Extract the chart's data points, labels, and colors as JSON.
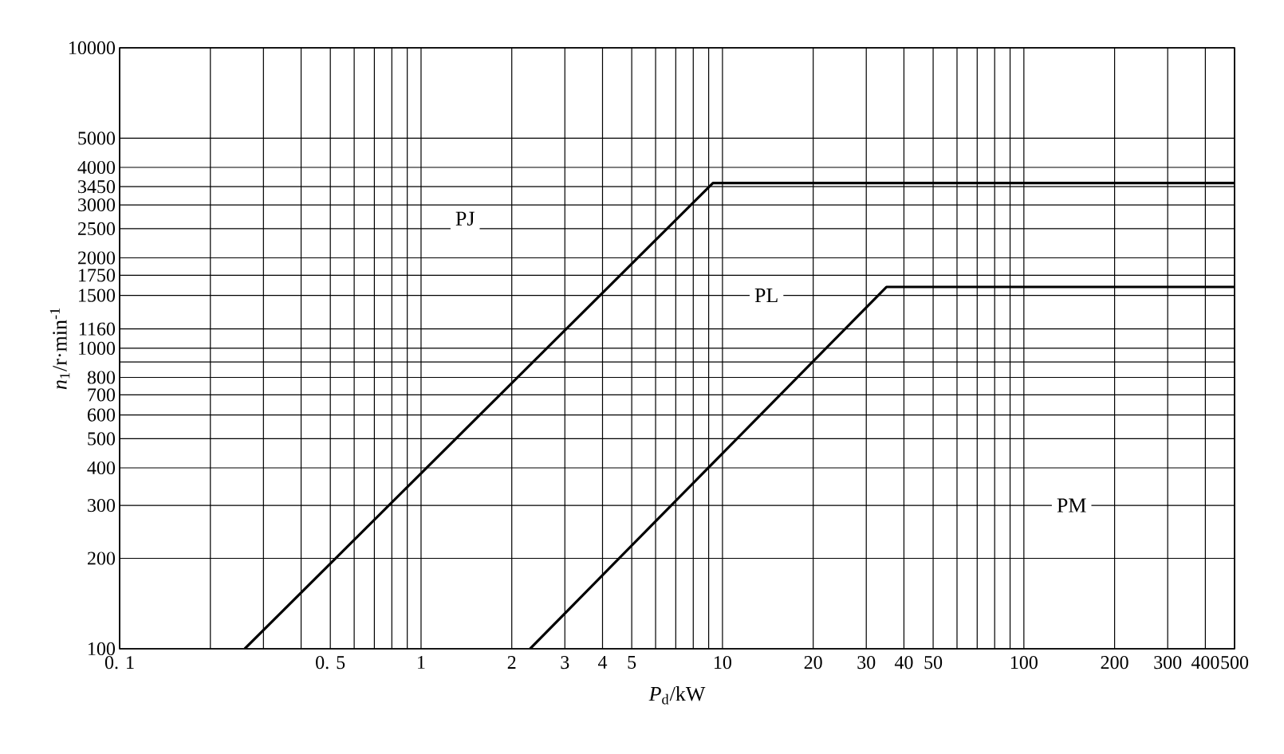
{
  "chart_data": {
    "type": "line",
    "xlabel": "*P*$_{d}$/kW",
    "ylabel": "*n*$_{1}$/r·min$^{-1}$",
    "log": "xy",
    "grid": true,
    "marker": "none",
    "line_style": "solid",
    "xlim": [
      0.1,
      500
    ],
    "ylim": [
      100,
      10000
    ],
    "xticks": [
      {
        "value": 0.1,
        "label": "0. 1"
      },
      {
        "value": 0.2,
        "label": null
      },
      {
        "value": 0.3,
        "label": null
      },
      {
        "value": 0.4,
        "label": null
      },
      {
        "value": 0.5,
        "label": "0. 5"
      },
      {
        "value": 0.6,
        "label": null
      },
      {
        "value": 0.7,
        "label": null
      },
      {
        "value": 0.8,
        "label": null
      },
      {
        "value": 0.9,
        "label": null
      },
      1,
      2,
      3,
      4,
      5,
      {
        "value": 6,
        "label": null
      },
      {
        "value": 7,
        "label": null
      },
      {
        "value": 8,
        "label": null
      },
      {
        "value": 9,
        "label": null
      },
      10,
      20,
      30,
      40,
      50,
      {
        "value": 60,
        "label": null
      },
      {
        "value": 70,
        "label": null
      },
      {
        "value": 80,
        "label": null
      },
      {
        "value": 90,
        "label": null
      },
      100,
      200,
      300,
      400,
      500
    ],
    "yticks": [
      100,
      200,
      300,
      400,
      500,
      600,
      700,
      800,
      {
        "value": 900,
        "label": null
      },
      1000,
      1160,
      1500,
      1750,
      2000,
      2500,
      3000,
      3450,
      4000,
      5000,
      10000
    ],
    "series": [
      {
        "color": "#000000",
        "x": [
          0.26,
          9.3,
          500
        ],
        "values": [
          100,
          3550,
          3550
        ]
      },
      {
        "color": "#000000",
        "x": [
          2.3,
          35,
          500
        ],
        "values": [
          100,
          1600,
          1600
        ]
      }
    ],
    "annotations": [
      {
        "text": "PJ",
        "x": 1.4,
        "y": 2700
      },
      {
        "text": "PL",
        "x": 14,
        "y": 1500
      },
      {
        "text": "PM",
        "x": 144,
        "y": 300
      }
    ]
  }
}
